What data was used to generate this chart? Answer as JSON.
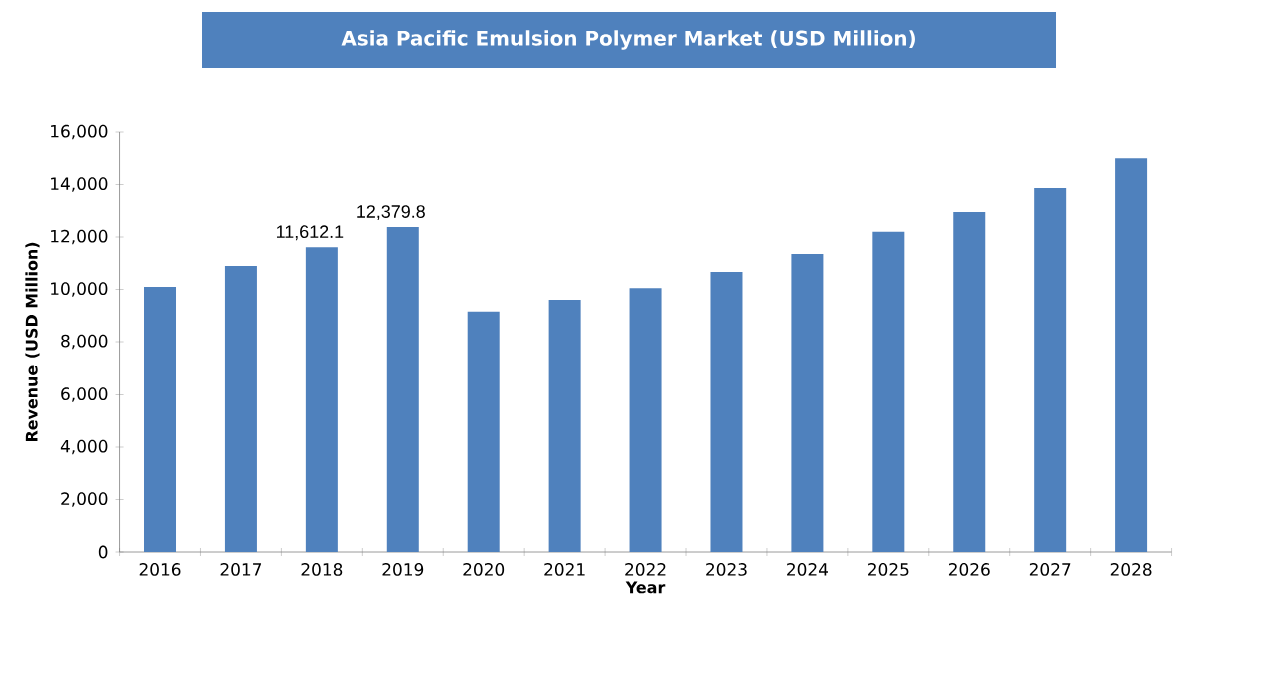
{
  "chart_data": {
    "type": "bar",
    "title": "Asia Pacific Emulsion Polymer Market (USD Million)",
    "xlabel": "Year",
    "ylabel": "Revenue (USD Million)",
    "categories": [
      "2016",
      "2017",
      "2018",
      "2019",
      "2020",
      "2021",
      "2022",
      "2023",
      "2024",
      "2025",
      "2026",
      "2027",
      "2028"
    ],
    "values": [
      10100,
      10900,
      11612.1,
      12379.8,
      9150,
      9600,
      10050,
      10670,
      11350,
      12200,
      12950,
      13870,
      15000
    ],
    "value_labels": [
      null,
      null,
      "11,612.1",
      "12,379.8",
      null,
      null,
      null,
      null,
      null,
      null,
      null,
      null,
      null
    ],
    "color": "#4f81bd",
    "ylim": [
      0,
      16000
    ],
    "yticks": [
      {
        "value": 0,
        "label": "0"
      },
      {
        "value": 2000,
        "label": "2,000"
      },
      {
        "value": 4000,
        "label": "4,000"
      },
      {
        "value": 6000,
        "label": "6,000"
      },
      {
        "value": 8000,
        "label": "8,000"
      },
      {
        "value": 10000,
        "label": "10,000"
      },
      {
        "value": 12000,
        "label": "12,000"
      },
      {
        "value": 14000,
        "label": "14,000"
      },
      {
        "value": 16000,
        "label": "16,000"
      }
    ],
    "grid": false
  }
}
